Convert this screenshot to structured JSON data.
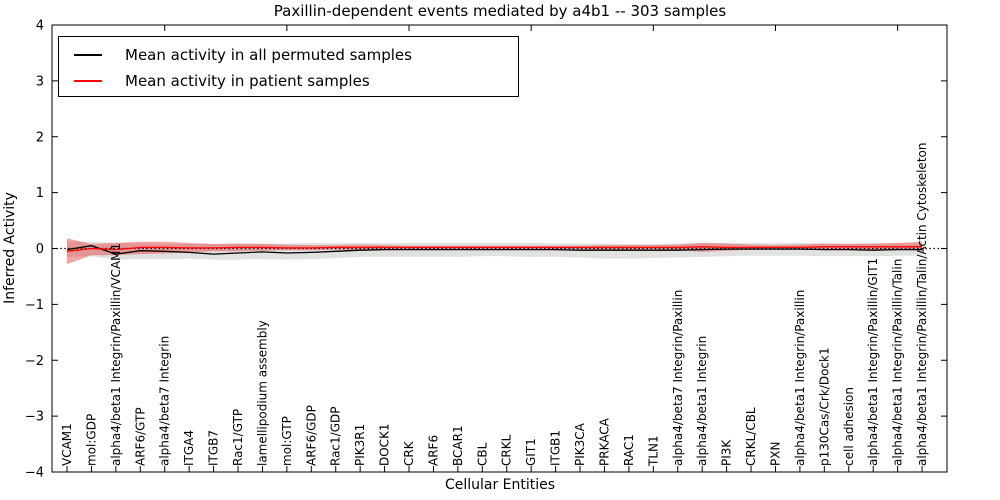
{
  "chart_data": {
    "type": "line",
    "title": "Paxillin-dependent events mediated by a4b1 -- 303 samples",
    "xlabel": "Cellular Entities",
    "ylabel": "Inferred Activity",
    "ylim": [
      -4,
      4
    ],
    "yticks": [
      -4,
      -3,
      -2,
      -1,
      0,
      1,
      2,
      3,
      4
    ],
    "ytick_labels": [
      "−4",
      "−3",
      "−2",
      "−1",
      "0",
      "1",
      "2",
      "3",
      "4"
    ],
    "grid": false,
    "legend_position": "upper left",
    "zero_line": {
      "value": 0,
      "style": "dotted",
      "color": "#000000"
    },
    "categories": [
      "VCAM1",
      "mol:GDP",
      "alpha4/beta1 Integrin/Paxillin/VCAM1",
      "ARF6/GTP",
      "alpha4/beta7 Integrin",
      "ITGA4",
      "ITGB7",
      "Rac1/GTP",
      "lamellipodium assembly",
      "mol:GTP",
      "ARF6/GDP",
      "Rac1/GDP",
      "PIK3R1",
      "DOCK1",
      "CRK",
      "ARF6",
      "BCAR1",
      "CBL",
      "CRKL",
      "GIT1",
      "ITGB1",
      "PIK3CA",
      "PRKACA",
      "RAC1",
      "TLN1",
      "alpha4/beta7 Integrin/Paxillin",
      "alpha4/beta1 Integrin",
      "PI3K",
      "CRKL/CBL",
      "PXN",
      "alpha4/beta1 Integrin/Paxillin",
      "p130Cas/Crk/Dock1",
      "cell adhesion",
      "alpha4/beta1 Integrin/Paxillin/GIT1",
      "alpha4/beta1 Integrin/Paxillin/Talin",
      "alpha4/beta1 Integrin/Paxillin/Talin/Actin Cytoskeleton"
    ],
    "series": [
      {
        "name": "Mean activity in all permuted samples",
        "color": "#000000",
        "band_color": "#bdbdbd",
        "band_opacity": 0.45,
        "values": [
          -0.02,
          0.05,
          -0.1,
          -0.04,
          -0.05,
          -0.07,
          -0.1,
          -0.08,
          -0.06,
          -0.08,
          -0.07,
          -0.05,
          -0.03,
          -0.02,
          -0.02,
          -0.02,
          -0.02,
          -0.02,
          -0.02,
          -0.02,
          -0.02,
          -0.03,
          -0.03,
          -0.03,
          -0.03,
          -0.03,
          -0.02,
          -0.01,
          -0.01,
          -0.01,
          -0.01,
          -0.02,
          -0.02,
          -0.03,
          -0.02,
          -0.02
        ],
        "band_upper": [
          0.12,
          0.12,
          0.1,
          0.09,
          0.08,
          0.08,
          0.08,
          0.08,
          0.09,
          0.09,
          0.1,
          0.1,
          0.1,
          0.1,
          0.1,
          0.1,
          0.1,
          0.1,
          0.1,
          0.1,
          0.09,
          0.09,
          0.09,
          0.08,
          0.08,
          0.09,
          0.1,
          0.1,
          0.1,
          0.1,
          0.1,
          0.09,
          0.09,
          0.09,
          0.09,
          0.09
        ],
        "band_lower": [
          -0.15,
          -0.14,
          -0.2,
          -0.19,
          -0.19,
          -0.18,
          -0.2,
          -0.2,
          -0.19,
          -0.2,
          -0.19,
          -0.17,
          -0.15,
          -0.15,
          -0.15,
          -0.15,
          -0.15,
          -0.14,
          -0.14,
          -0.15,
          -0.15,
          -0.16,
          -0.18,
          -0.18,
          -0.17,
          -0.16,
          -0.15,
          -0.14,
          -0.13,
          -0.13,
          -0.13,
          -0.14,
          -0.14,
          -0.14,
          -0.13,
          -0.13
        ]
      },
      {
        "name": "Mean activity in patient samples",
        "color": "#ff0000",
        "band_color": "#e84a4a",
        "band_opacity": 0.5,
        "values": [
          -0.05,
          0.0,
          -0.02,
          0.02,
          0.02,
          0.01,
          0.01,
          0.02,
          0.02,
          0.01,
          0.01,
          0.02,
          0.02,
          0.02,
          0.02,
          0.02,
          0.02,
          0.02,
          0.02,
          0.02,
          0.02,
          0.02,
          0.02,
          0.02,
          0.02,
          0.02,
          0.03,
          0.02,
          0.02,
          0.02,
          0.02,
          0.03,
          0.03,
          0.03,
          0.03,
          0.03
        ],
        "band_upper": [
          0.18,
          0.08,
          0.1,
          0.12,
          0.12,
          0.1,
          0.08,
          0.09,
          0.08,
          0.07,
          0.06,
          0.06,
          0.07,
          0.06,
          0.05,
          0.05,
          0.05,
          0.05,
          0.05,
          0.05,
          0.05,
          0.05,
          0.06,
          0.06,
          0.06,
          0.07,
          0.1,
          0.09,
          0.07,
          0.06,
          0.07,
          0.09,
          0.08,
          0.09,
          0.1,
          0.12
        ],
        "band_lower": [
          -0.28,
          -0.12,
          -0.12,
          -0.1,
          -0.09,
          -0.07,
          -0.05,
          -0.05,
          -0.04,
          -0.03,
          -0.03,
          -0.02,
          -0.03,
          -0.02,
          -0.01,
          -0.01,
          -0.01,
          -0.01,
          -0.01,
          -0.01,
          -0.01,
          -0.01,
          -0.02,
          -0.02,
          -0.01,
          -0.02,
          -0.06,
          -0.04,
          -0.02,
          -0.01,
          -0.01,
          -0.02,
          -0.01,
          -0.02,
          -0.02,
          -0.04
        ]
      }
    ]
  }
}
